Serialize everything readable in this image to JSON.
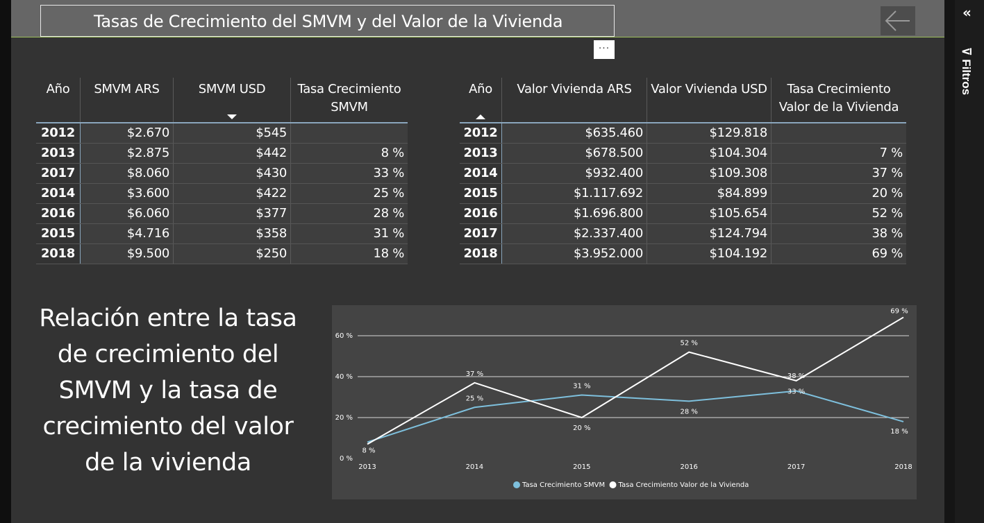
{
  "header": {
    "title": "Tasas de Crecimiento del SMVM y del Valor de la Vivienda"
  },
  "more_label": "···",
  "filters": {
    "label": "Filtros"
  },
  "smvm_table": {
    "headers": [
      "Año",
      "SMVM ARS",
      "SMVM USD",
      "Tasa Crecimiento SMVM"
    ],
    "rows": [
      [
        "2012",
        "$2.670",
        "$545",
        ""
      ],
      [
        "2013",
        "$2.875",
        "$442",
        "8 %"
      ],
      [
        "2017",
        "$8.060",
        "$430",
        "33 %"
      ],
      [
        "2014",
        "$3.600",
        "$422",
        "25 %"
      ],
      [
        "2016",
        "$6.060",
        "$377",
        "28 %"
      ],
      [
        "2015",
        "$4.716",
        "$358",
        "31 %"
      ],
      [
        "2018",
        "$9.500",
        "$250",
        "18 %"
      ]
    ]
  },
  "vivienda_table": {
    "headers": [
      "Año",
      "Valor Vivienda ARS",
      "Valor Vivienda USD",
      "Tasa Crecimiento Valor de la Vivienda"
    ],
    "rows": [
      [
        "2012",
        "$635.460",
        "$129.818",
        ""
      ],
      [
        "2013",
        "$678.500",
        "$104.304",
        "7 %"
      ],
      [
        "2014",
        "$932.400",
        "$109.308",
        "37 %"
      ],
      [
        "2015",
        "$1.117.692",
        "$84.899",
        "20 %"
      ],
      [
        "2016",
        "$1.696.800",
        "$105.654",
        "52 %"
      ],
      [
        "2017",
        "$2.337.400",
        "$124.794",
        "38 %"
      ],
      [
        "2018",
        "$3.952.000",
        "$104.192",
        "69 %"
      ]
    ]
  },
  "relation_text": "Relación entre la tasa de crecimiento del SMVM y la tasa de crecimiento del valor de la vivienda",
  "chart_data": {
    "type": "line",
    "x": [
      "2013",
      "2014",
      "2015",
      "2016",
      "2017",
      "2018"
    ],
    "ylim": [
      0,
      60
    ],
    "yticks": [
      "0 %",
      "20 %",
      "40 %",
      "60 %"
    ],
    "grid": true,
    "legend_position": "bottom-center",
    "series": [
      {
        "name": "Tasa Crecimiento SMVM",
        "color": "#7ec0dd",
        "values": [
          8,
          25,
          31,
          28,
          33,
          18
        ],
        "labels": [
          "8 %",
          "25 %",
          "31 %",
          "28 %",
          "33 %",
          "18 %"
        ]
      },
      {
        "name": "Tasa Crecimiento Valor de la Vivienda",
        "color": "#ffffff",
        "values": [
          7,
          37,
          20,
          52,
          38,
          69
        ],
        "labels": [
          "",
          "37 %",
          "20 %",
          "52 %",
          "38 %",
          "69 %"
        ]
      }
    ]
  }
}
